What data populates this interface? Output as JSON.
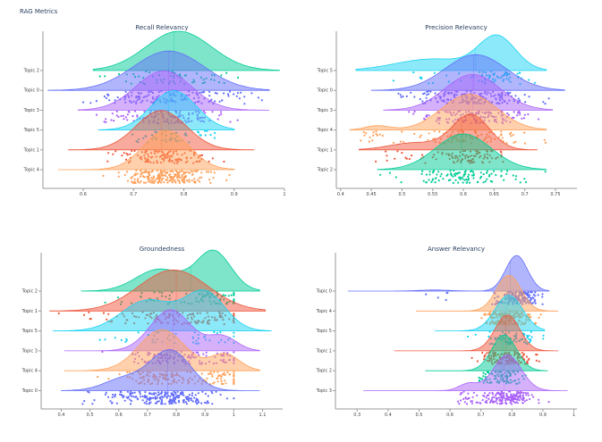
{
  "page_title": "RAG Metrics",
  "colors": {
    "topic_0": "#636efa",
    "topic_1": "#ef553b",
    "topic_2": "#00cc96",
    "topic_3": "#ab63fa",
    "topic_4": "#ffa15a",
    "topic_5": "#19d3f3"
  },
  "chart_data": [
    {
      "type": "violin",
      "title": "Recall Relevancy",
      "xlabel": "",
      "ylabel": "",
      "xlim": [
        0.52,
        1.0
      ],
      "xticks": [
        0.6,
        0.7,
        0.8,
        0.9,
        1
      ],
      "xtick_labels": [
        "0.6",
        "0.7",
        "0.8",
        "0.9",
        "1"
      ],
      "categories": [
        "Topic 2",
        "Topic 0",
        "Topic 3",
        "Topic 5",
        "Topic 1",
        "Topic 4"
      ],
      "series": [
        {
          "name": "Topic 2",
          "color_key": "topic_2",
          "min": 0.62,
          "max": 0.99,
          "median": 0.78,
          "modes": [
            [
              0.79,
              0.065,
              1.0
            ]
          ],
          "n": 60
        },
        {
          "name": "Topic 0",
          "color_key": "topic_0",
          "min": 0.53,
          "max": 0.97,
          "median": 0.77,
          "modes": [
            [
              0.77,
              0.07,
              1.0
            ]
          ],
          "n": 140
        },
        {
          "name": "Topic 3",
          "color_key": "topic_3",
          "min": 0.59,
          "max": 0.97,
          "median": 0.77,
          "modes": [
            [
              0.76,
              0.055,
              1.0
            ]
          ],
          "n": 130
        },
        {
          "name": "Topic 5",
          "color_key": "topic_5",
          "min": 0.63,
          "max": 0.9,
          "median": 0.77,
          "modes": [
            [
              0.78,
              0.045,
              1.0
            ]
          ],
          "n": 50
        },
        {
          "name": "Topic 1",
          "color_key": "topic_1",
          "min": 0.57,
          "max": 0.94,
          "median": 0.755,
          "modes": [
            [
              0.755,
              0.05,
              1.0
            ]
          ],
          "n": 120
        },
        {
          "name": "Topic 4",
          "color_key": "topic_4",
          "min": 0.55,
          "max": 0.9,
          "median": 0.76,
          "modes": [
            [
              0.765,
              0.045,
              1.0
            ]
          ],
          "n": 220
        }
      ]
    },
    {
      "type": "violin",
      "title": "Precision Relevancy",
      "xlabel": "",
      "ylabel": "",
      "xlim": [
        0.393,
        0.785
      ],
      "xticks": [
        0.4,
        0.45,
        0.5,
        0.55,
        0.6,
        0.65,
        0.7,
        0.75
      ],
      "xtick_labels": [
        "0.4",
        "0.45",
        "0.5",
        "0.55",
        "0.6",
        "0.65",
        "0.7",
        "0.75"
      ],
      "categories": [
        "Topic 5",
        "Topic 0",
        "Topic 3",
        "Topic 4",
        "Topic 1",
        "Topic 2"
      ],
      "series": [
        {
          "name": "Topic 5",
          "color_key": "topic_5",
          "min": 0.425,
          "max": 0.735,
          "median": 0.62,
          "modes": [
            [
              0.655,
              0.03,
              1.0
            ],
            [
              0.55,
              0.06,
              0.35
            ]
          ],
          "n": 70
        },
        {
          "name": "Topic 0",
          "color_key": "topic_0",
          "min": 0.45,
          "max": 0.765,
          "median": 0.617,
          "modes": [
            [
              0.62,
              0.05,
              1.0
            ]
          ],
          "n": 180
        },
        {
          "name": "Topic 3",
          "color_key": "topic_3",
          "min": 0.47,
          "max": 0.745,
          "median": 0.615,
          "modes": [
            [
              0.615,
              0.045,
              1.0
            ]
          ],
          "n": 130
        },
        {
          "name": "Topic 4",
          "color_key": "topic_4",
          "min": 0.415,
          "max": 0.735,
          "median": 0.61,
          "modes": [
            [
              0.61,
              0.045,
              1.0
            ],
            [
              0.46,
              0.02,
              0.12
            ]
          ],
          "n": 110
        },
        {
          "name": "Topic 1",
          "color_key": "topic_1",
          "min": 0.43,
          "max": 0.72,
          "median": 0.597,
          "modes": [
            [
              0.612,
              0.03,
              1.0
            ],
            [
              0.52,
              0.04,
              0.2
            ]
          ],
          "n": 100
        },
        {
          "name": "Topic 2",
          "color_key": "topic_2",
          "min": 0.46,
          "max": 0.735,
          "median": 0.597,
          "modes": [
            [
              0.6,
              0.045,
              1.0
            ]
          ],
          "n": 110
        }
      ]
    },
    {
      "type": "violin",
      "title": "Groundedness",
      "xlabel": "",
      "ylabel": "",
      "xlim": [
        0.33,
        1.17
      ],
      "xticks": [
        0.4,
        0.5,
        0.6,
        0.7,
        0.8,
        0.9,
        1,
        1.1
      ],
      "xtick_labels": [
        "0.4",
        "0.5",
        "0.6",
        "0.7",
        "0.8",
        "0.9",
        "1",
        "1.1"
      ],
      "categories": [
        "Topic 2",
        "Topic 1",
        "Topic 5",
        "Topic 3",
        "Topic 4",
        "Topic 0"
      ],
      "series": [
        {
          "name": "Topic 2",
          "color_key": "topic_2",
          "min": 0.47,
          "max": 1.09,
          "median": 0.85,
          "modes": [
            [
              0.93,
              0.06,
              1.0
            ],
            [
              0.74,
              0.08,
              0.55
            ]
          ],
          "n": 90,
          "cap": 1.0
        },
        {
          "name": "Topic 1",
          "color_key": "topic_1",
          "min": 0.36,
          "max": 1.11,
          "median": 0.8,
          "modes": [
            [
              0.79,
              0.12,
              1.0
            ]
          ],
          "n": 130,
          "cap": 1.0
        },
        {
          "name": "Topic 5",
          "color_key": "topic_5",
          "min": 0.37,
          "max": 1.13,
          "median": 0.79,
          "modes": [
            [
              0.9,
              0.07,
              1.0
            ],
            [
              0.7,
              0.09,
              0.8
            ]
          ],
          "n": 50,
          "cap": 1.0
        },
        {
          "name": "Topic 3",
          "color_key": "topic_3",
          "min": 0.41,
          "max": 1.09,
          "median": 0.79,
          "modes": [
            [
              0.78,
              0.07,
              1.0
            ],
            [
              0.96,
              0.05,
              0.35
            ]
          ],
          "n": 140,
          "cap": 1.0
        },
        {
          "name": "Topic 4",
          "color_key": "topic_4",
          "min": 0.41,
          "max": 1.09,
          "median": 0.77,
          "modes": [
            [
              0.75,
              0.08,
              1.0
            ],
            [
              0.97,
              0.05,
              0.4
            ]
          ],
          "n": 150,
          "cap": 1.0
        },
        {
          "name": "Topic 0",
          "color_key": "topic_0",
          "min": 0.4,
          "max": 1.09,
          "median": 0.77,
          "modes": [
            [
              0.78,
              0.07,
              1.0
            ],
            [
              0.62,
              0.07,
              0.3
            ]
          ],
          "n": 220,
          "cap": 1.0
        }
      ]
    },
    {
      "type": "violin",
      "title": "Answer Relevancy",
      "xlabel": "",
      "ylabel": "",
      "xlim": [
        0.23,
        1.01
      ],
      "xticks": [
        0.3,
        0.4,
        0.5,
        0.6,
        0.7,
        0.8,
        0.9,
        1
      ],
      "xtick_labels": [
        "0.3",
        "0.4",
        "0.5",
        "0.6",
        "0.7",
        "0.8",
        "0.9",
        "1"
      ],
      "categories": [
        "Topic 0",
        "Topic 4",
        "Topic 5",
        "Topic 1",
        "Topic 2",
        "Topic 3"
      ],
      "series": [
        {
          "name": "Topic 0",
          "color_key": "topic_0",
          "min": 0.27,
          "max": 0.92,
          "median": 0.795,
          "modes": [
            [
              0.815,
              0.035,
              1.0
            ],
            [
              0.55,
              0.05,
              0.03
            ]
          ],
          "n": 160
        },
        {
          "name": "Topic 4",
          "color_key": "topic_4",
          "min": 0.49,
          "max": 0.95,
          "median": 0.785,
          "modes": [
            [
              0.79,
              0.04,
              1.0
            ]
          ],
          "n": 190
        },
        {
          "name": "Topic 5",
          "color_key": "topic_5",
          "min": 0.55,
          "max": 0.905,
          "median": 0.78,
          "modes": [
            [
              0.79,
              0.045,
              1.0
            ]
          ],
          "n": 70
        },
        {
          "name": "Topic 1",
          "color_key": "topic_1",
          "min": 0.42,
          "max": 0.95,
          "median": 0.78,
          "modes": [
            [
              0.785,
              0.04,
              1.0
            ]
          ],
          "n": 130
        },
        {
          "name": "Topic 2",
          "color_key": "topic_2",
          "min": 0.52,
          "max": 0.915,
          "median": 0.77,
          "modes": [
            [
              0.775,
              0.04,
              1.0
            ]
          ],
          "n": 90
        },
        {
          "name": "Topic 3",
          "color_key": "topic_3",
          "min": 0.32,
          "max": 0.98,
          "median": 0.775,
          "modes": [
            [
              0.785,
              0.045,
              1.0
            ],
            [
              0.66,
              0.03,
              0.2
            ]
          ],
          "n": 190
        }
      ]
    }
  ]
}
